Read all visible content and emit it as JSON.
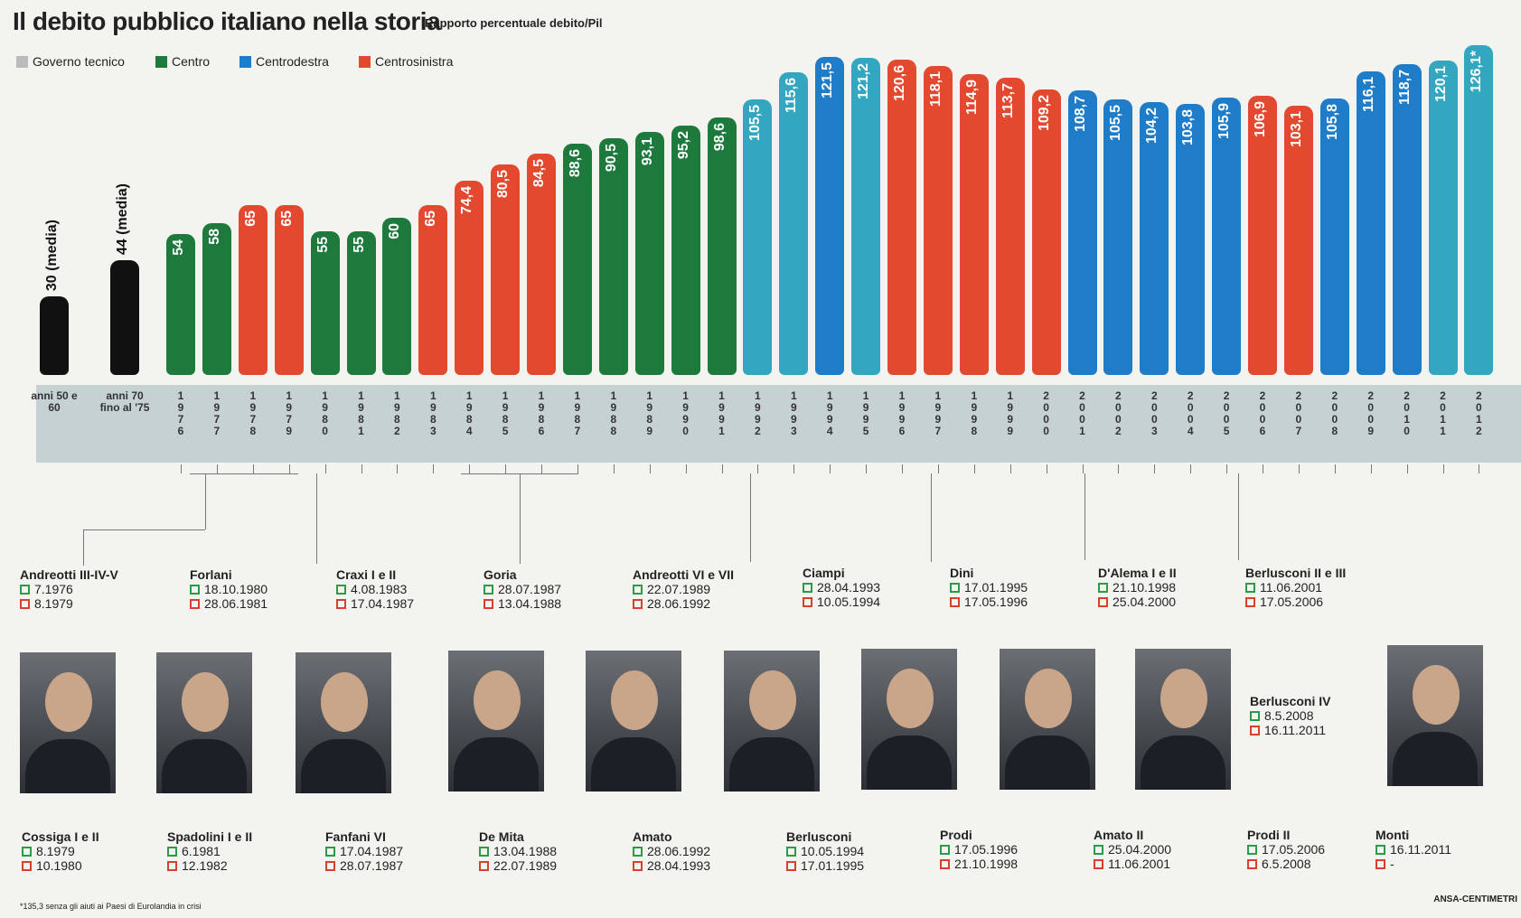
{
  "chart_data": {
    "type": "bar",
    "title": "Il debito pubblico italiano nella storia",
    "subtitle": "Rapporto percentuale debito/Pil",
    "legend": [
      {
        "name": "Governo tecnico",
        "color": "#b9bcbd"
      },
      {
        "name": "Centro",
        "color": "#1d7a3c"
      },
      {
        "name": "Centrodestra",
        "color": "#1f7cc9"
      },
      {
        "name": "Centrosinistra",
        "color": "#e2492f"
      }
    ],
    "categories": [
      "anni 50 e 60",
      "anni 70 fino al '75",
      "1976",
      "1977",
      "1978",
      "1979",
      "1980",
      "1981",
      "1982",
      "1983",
      "1984",
      "1985",
      "1986",
      "1987",
      "1988",
      "1989",
      "1990",
      "1991",
      "1992",
      "1993",
      "1994",
      "1995",
      "1996",
      "1997",
      "1998",
      "1999",
      "2000",
      "2001",
      "2002",
      "2003",
      "2004",
      "2005",
      "2006",
      "2007",
      "2008",
      "2009",
      "2010",
      "2011",
      "2012"
    ],
    "values": [
      30,
      44,
      54,
      58,
      65,
      65,
      55,
      55,
      60,
      65,
      74.4,
      80.5,
      84.5,
      88.6,
      90.5,
      93.1,
      95.2,
      98.6,
      105.5,
      115.6,
      121.5,
      121.2,
      120.6,
      118.1,
      114.9,
      113.7,
      109.2,
      108.7,
      105.5,
      104.2,
      103.8,
      105.9,
      106.9,
      103.1,
      105.8,
      116.1,
      118.7,
      120.1,
      126.1
    ],
    "value_labels": [
      "30 (media)",
      "44 (media)",
      "54",
      "58",
      "65",
      "65",
      "55",
      "55",
      "60",
      "65",
      "74,4",
      "80,5",
      "84,5",
      "88,6",
      "90,5",
      "93,1",
      "95,2",
      "98,6",
      "105,5",
      "115,6",
      "121,5",
      "121,2",
      "120,6",
      "118,1",
      "114,9",
      "113,7",
      "109,2",
      "108,7",
      "105,5",
      "104,2",
      "103,8",
      "105,9",
      "106,9",
      "103,1",
      "105,8",
      "116,1",
      "118,7",
      "120,1",
      "126,1*"
    ],
    "colors": [
      "#111111",
      "#111111",
      "#1d7a3c",
      "#1d7a3c",
      "#e2492f",
      "#e2492f",
      "#1d7a3c",
      "#1d7a3c",
      "#1d7a3c",
      "#e2492f",
      "#e2492f",
      "#e2492f",
      "#e2492f",
      "#1d7a3c",
      "#1d7a3c",
      "#1d7a3c",
      "#1d7a3c",
      "#1d7a3c",
      "#34a7c0",
      "#34a7c0",
      "#1f7cc9",
      "#34a7c0",
      "#e2492f",
      "#e2492f",
      "#e2492f",
      "#e2492f",
      "#e2492f",
      "#1f7cc9",
      "#1f7cc9",
      "#1f7cc9",
      "#1f7cc9",
      "#1f7cc9",
      "#e2492f",
      "#e2492f",
      "#1f7cc9",
      "#1f7cc9",
      "#1f7cc9",
      "#34a7c0",
      "#34a7c0"
    ],
    "footnote": "*135,3 senza gli aiuti ai Paesi di Eurolandia in crisi",
    "source": "ANSA-CENTIMETRI"
  },
  "governments_top": [
    {
      "name": "Andreotti III-IV-V",
      "start": "7.1976",
      "end": "8.1979"
    },
    {
      "name": "Forlani",
      "start": "18.10.1980",
      "end": "28.06.1981"
    },
    {
      "name": "Craxi I e II",
      "start": "4.08.1983",
      "end": "17.04.1987"
    },
    {
      "name": "Goria",
      "start": "28.07.1987",
      "end": "13.04.1988"
    },
    {
      "name": "Andreotti VI e VII",
      "start": "22.07.1989",
      "end": "28.06.1992"
    },
    {
      "name": "Ciampi",
      "start": "28.04.1993",
      "end": "10.05.1994"
    },
    {
      "name": "Dini",
      "start": "17.01.1995",
      "end": "17.05.1996"
    },
    {
      "name": "D'Alema I e II",
      "start": "21.10.1998",
      "end": "25.04.2000"
    },
    {
      "name": "Berlusconi II e III",
      "start": "11.06.2001",
      "end": "17.05.2006"
    },
    {
      "name": "Berlusconi IV",
      "start": "8.5.2008",
      "end": "16.11.2011"
    }
  ],
  "governments_bottom": [
    {
      "name": "Cossiga I e II",
      "start": "8.1979",
      "end": "10.1980"
    },
    {
      "name": "Spadolini I e II",
      "start": "6.1981",
      "end": "12.1982"
    },
    {
      "name": "Fanfani VI",
      "start": "17.04.1987",
      "end": "28.07.1987"
    },
    {
      "name": "De Mita",
      "start": "13.04.1988",
      "end": "22.07.1989"
    },
    {
      "name": "Amato",
      "start": "28.06.1992",
      "end": "28.04.1993"
    },
    {
      "name": "Berlusconi",
      "start": "10.05.1994",
      "end": "17.01.1995"
    },
    {
      "name": "Prodi",
      "start": "17.05.1996",
      "end": "21.10.1998"
    },
    {
      "name": "Amato II",
      "start": "25.04.2000",
      "end": "11.06.2001"
    },
    {
      "name": "Prodi II",
      "start": "17.05.2006",
      "end": "6.5.2008"
    },
    {
      "name": "Monti",
      "start": "16.11.2011",
      "end": "-"
    }
  ]
}
